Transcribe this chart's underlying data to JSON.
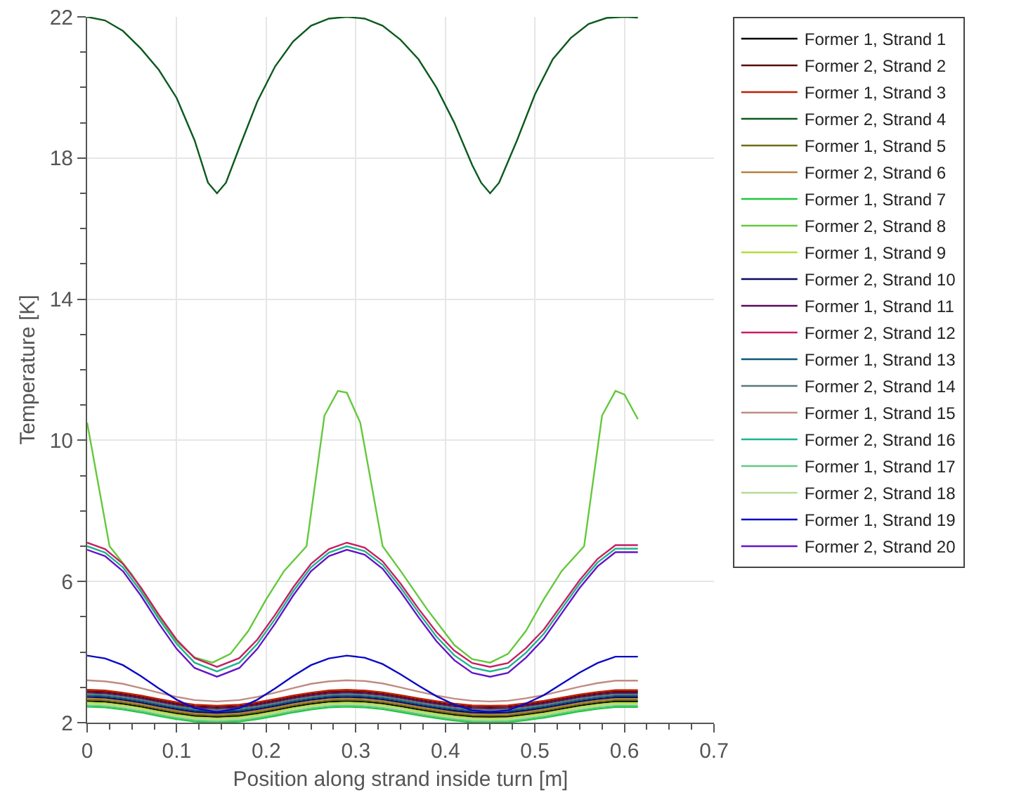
{
  "chart_data": {
    "type": "line",
    "xlabel": "Position along strand inside turn [m]",
    "ylabel": "Temperature [K]",
    "x": [
      0,
      0.02,
      0.04,
      0.06,
      0.08,
      0.1,
      0.12,
      0.145,
      0.17,
      0.19,
      0.21,
      0.23,
      0.25,
      0.27,
      0.29,
      0.31,
      0.33,
      0.35,
      0.37,
      0.39,
      0.41,
      0.43,
      0.45,
      0.47,
      0.49,
      0.51,
      0.53,
      0.55,
      0.57,
      0.59,
      0.615
    ],
    "xlim": [
      0,
      0.7
    ],
    "xticks": [
      0,
      0.1,
      0.2,
      0.3,
      0.4,
      0.5,
      0.6,
      0.7
    ],
    "ylim": [
      2,
      22
    ],
    "yticks": [
      2,
      6,
      10,
      14,
      18,
      22
    ],
    "grid": true,
    "legend": "right",
    "marker": "none",
    "line_style": "solid",
    "series": [
      {
        "name": "Former 1, Strand 1",
        "color": "#000000",
        "values": [
          2.61,
          2.59,
          2.53,
          2.45,
          2.35,
          2.26,
          2.19,
          2.16,
          2.19,
          2.26,
          2.35,
          2.45,
          2.53,
          2.59,
          2.61,
          2.59,
          2.54,
          2.46,
          2.37,
          2.29,
          2.22,
          2.17,
          2.16,
          2.17,
          2.23,
          2.3,
          2.39,
          2.48,
          2.55,
          2.6,
          2.6
        ]
      },
      {
        "name": "Former 2, Strand 2",
        "color": "#5a0a0a",
        "values": [
          2.89,
          2.87,
          2.81,
          2.73,
          2.63,
          2.54,
          2.47,
          2.44,
          2.47,
          2.54,
          2.63,
          2.73,
          2.81,
          2.87,
          2.89,
          2.87,
          2.82,
          2.74,
          2.65,
          2.57,
          2.5,
          2.45,
          2.44,
          2.45,
          2.51,
          2.58,
          2.67,
          2.76,
          2.83,
          2.88,
          2.88
        ]
      },
      {
        "name": "Former 1, Strand 3",
        "color": "#c01e00",
        "values": [
          2.93,
          2.91,
          2.85,
          2.77,
          2.67,
          2.58,
          2.51,
          2.48,
          2.51,
          2.58,
          2.67,
          2.77,
          2.85,
          2.91,
          2.93,
          2.91,
          2.86,
          2.78,
          2.69,
          2.61,
          2.54,
          2.49,
          2.48,
          2.49,
          2.55,
          2.62,
          2.71,
          2.8,
          2.87,
          2.92,
          2.92
        ]
      },
      {
        "name": "Former 2, Strand 4",
        "color": "#0a5a1e",
        "x": [
          0,
          0.02,
          0.04,
          0.06,
          0.08,
          0.1,
          0.12,
          0.135,
          0.145,
          0.155,
          0.17,
          0.19,
          0.21,
          0.23,
          0.25,
          0.27,
          0.29,
          0.31,
          0.33,
          0.35,
          0.37,
          0.39,
          0.41,
          0.43,
          0.44,
          0.45,
          0.46,
          0.48,
          0.5,
          0.52,
          0.54,
          0.56,
          0.58,
          0.6,
          0.615
        ],
        "values": [
          22,
          21.9,
          21.6,
          21.1,
          20.5,
          19.7,
          18.5,
          17.3,
          17,
          17.3,
          18.3,
          19.6,
          20.6,
          21.3,
          21.75,
          21.95,
          22,
          21.95,
          21.75,
          21.35,
          20.8,
          20,
          19,
          17.8,
          17.3,
          17,
          17.3,
          18.5,
          19.8,
          20.8,
          21.4,
          21.8,
          21.97,
          22,
          21.98
        ]
      },
      {
        "name": "Former 1, Strand 5",
        "color": "#6e6e14",
        "values": [
          2.65,
          2.63,
          2.57,
          2.49,
          2.39,
          2.3,
          2.23,
          2.2,
          2.23,
          2.3,
          2.39,
          2.49,
          2.57,
          2.63,
          2.65,
          2.63,
          2.58,
          2.5,
          2.41,
          2.33,
          2.26,
          2.21,
          2.2,
          2.21,
          2.27,
          2.34,
          2.43,
          2.52,
          2.59,
          2.64,
          2.64
        ]
      },
      {
        "name": "Former 2, Strand 6",
        "color": "#b4823c",
        "values": [
          2.69,
          2.67,
          2.61,
          2.53,
          2.43,
          2.34,
          2.27,
          2.24,
          2.27,
          2.34,
          2.43,
          2.53,
          2.61,
          2.67,
          2.69,
          2.67,
          2.62,
          2.54,
          2.45,
          2.37,
          2.3,
          2.25,
          2.24,
          2.25,
          2.31,
          2.38,
          2.47,
          2.56,
          2.63,
          2.68,
          2.68
        ]
      },
      {
        "name": "Former 1, Strand 7",
        "color": "#1ec83c",
        "values": [
          2.45,
          2.43,
          2.37,
          2.29,
          2.19,
          2.1,
          2.03,
          2,
          2.03,
          2.1,
          2.19,
          2.29,
          2.37,
          2.43,
          2.45,
          2.43,
          2.38,
          2.3,
          2.21,
          2.13,
          2.06,
          2.01,
          2,
          2.01,
          2.07,
          2.14,
          2.23,
          2.32,
          2.39,
          2.44,
          2.44
        ]
      },
      {
        "name": "Former 2, Strand 8",
        "color": "#64c83c",
        "x": [
          0,
          0.025,
          0.05,
          0.08,
          0.1,
          0.12,
          0.14,
          0.16,
          0.18,
          0.2,
          0.22,
          0.245,
          0.265,
          0.28,
          0.29,
          0.305,
          0.33,
          0.35,
          0.38,
          0.41,
          0.43,
          0.45,
          0.47,
          0.49,
          0.51,
          0.53,
          0.555,
          0.575,
          0.59,
          0.6,
          0.615
        ],
        "values": [
          10.5,
          7,
          6.2,
          5,
          4.3,
          3.85,
          3.7,
          3.95,
          4.6,
          5.5,
          6.3,
          7,
          10.7,
          11.4,
          11.35,
          10.5,
          7,
          6.3,
          5.2,
          4.2,
          3.8,
          3.7,
          3.95,
          4.6,
          5.5,
          6.3,
          7,
          10.7,
          11.4,
          11.3,
          10.6
        ]
      },
      {
        "name": "Former 1, Strand 9",
        "color": "#b4dc3c",
        "values": [
          2.57,
          2.55,
          2.49,
          2.41,
          2.31,
          2.22,
          2.15,
          2.12,
          2.15,
          2.22,
          2.31,
          2.41,
          2.49,
          2.55,
          2.57,
          2.55,
          2.5,
          2.42,
          2.33,
          2.25,
          2.18,
          2.13,
          2.12,
          2.13,
          2.19,
          2.26,
          2.35,
          2.44,
          2.51,
          2.56,
          2.56
        ]
      },
      {
        "name": "Former 2, Strand 10",
        "color": "#0a0a64",
        "values": [
          2.73,
          2.71,
          2.65,
          2.57,
          2.47,
          2.38,
          2.31,
          2.28,
          2.31,
          2.38,
          2.47,
          2.57,
          2.65,
          2.71,
          2.73,
          2.71,
          2.66,
          2.58,
          2.49,
          2.41,
          2.34,
          2.29,
          2.28,
          2.29,
          2.35,
          2.42,
          2.51,
          2.6,
          2.67,
          2.72,
          2.72
        ]
      },
      {
        "name": "Former 1, Strand 11",
        "color": "#5a0a5a",
        "values": [
          2.85,
          2.83,
          2.77,
          2.69,
          2.59,
          2.5,
          2.43,
          2.4,
          2.43,
          2.5,
          2.59,
          2.69,
          2.77,
          2.83,
          2.85,
          2.83,
          2.78,
          2.7,
          2.61,
          2.53,
          2.46,
          2.41,
          2.4,
          2.41,
          2.47,
          2.54,
          2.63,
          2.72,
          2.79,
          2.84,
          2.84
        ]
      },
      {
        "name": "Former 2, Strand 12",
        "color": "#c81e64",
        "values": [
          7.1,
          6.92,
          6.5,
          5.83,
          5.06,
          4.35,
          3.83,
          3.58,
          3.83,
          4.35,
          5.06,
          5.83,
          6.5,
          6.92,
          7.1,
          6.96,
          6.57,
          5.94,
          5.23,
          4.57,
          4.04,
          3.69,
          3.58,
          3.69,
          4.11,
          4.64,
          5.34,
          6.04,
          6.64,
          7.03,
          7.03
        ]
      },
      {
        "name": "Former 1, Strand 13",
        "color": "#0a5a78",
        "values": [
          2.77,
          2.75,
          2.69,
          2.61,
          2.51,
          2.42,
          2.35,
          2.32,
          2.35,
          2.42,
          2.51,
          2.61,
          2.69,
          2.75,
          2.77,
          2.75,
          2.7,
          2.62,
          2.53,
          2.45,
          2.38,
          2.33,
          2.32,
          2.33,
          2.39,
          2.46,
          2.55,
          2.64,
          2.71,
          2.76,
          2.76
        ]
      },
      {
        "name": "Former 2, Strand 14",
        "color": "#5a7878",
        "values": [
          2.81,
          2.79,
          2.73,
          2.65,
          2.55,
          2.46,
          2.39,
          2.36,
          2.39,
          2.46,
          2.55,
          2.65,
          2.73,
          2.79,
          2.81,
          2.79,
          2.74,
          2.66,
          2.57,
          2.49,
          2.42,
          2.37,
          2.36,
          2.37,
          2.43,
          2.5,
          2.59,
          2.68,
          2.75,
          2.8,
          2.8
        ]
      },
      {
        "name": "Former 1, Strand 15",
        "color": "#c08c82",
        "values": [
          3.2,
          3.17,
          3.1,
          2.98,
          2.85,
          2.73,
          2.64,
          2.6,
          2.64,
          2.73,
          2.85,
          2.98,
          3.1,
          3.17,
          3.2,
          3.18,
          3.11,
          3,
          2.88,
          2.77,
          2.68,
          2.62,
          2.6,
          2.62,
          2.69,
          2.78,
          2.9,
          3.02,
          3.12,
          3.19,
          3.19
        ]
      },
      {
        "name": "Former 2, Strand 16",
        "color": "#1eb48c",
        "values": [
          7,
          6.82,
          6.4,
          5.72,
          4.94,
          4.23,
          3.7,
          3.45,
          3.7,
          4.23,
          4.94,
          5.72,
          6.4,
          6.82,
          7,
          6.86,
          6.47,
          5.83,
          5.12,
          4.44,
          3.91,
          3.56,
          3.45,
          3.56,
          3.98,
          4.52,
          5.23,
          5.94,
          6.54,
          6.93,
          6.93
        ]
      },
      {
        "name": "Former 1, Strand 17",
        "color": "#64c882",
        "values": [
          2.49,
          2.47,
          2.41,
          2.33,
          2.23,
          2.14,
          2.07,
          2.04,
          2.07,
          2.14,
          2.23,
          2.33,
          2.41,
          2.47,
          2.49,
          2.47,
          2.42,
          2.34,
          2.25,
          2.17,
          2.1,
          2.05,
          2.04,
          2.05,
          2.11,
          2.18,
          2.27,
          2.36,
          2.43,
          2.48,
          2.48
        ]
      },
      {
        "name": "Former 2, Strand 18",
        "color": "#b4dc96",
        "values": [
          2.53,
          2.51,
          2.45,
          2.37,
          2.27,
          2.18,
          2.11,
          2.08,
          2.11,
          2.18,
          2.27,
          2.37,
          2.45,
          2.51,
          2.53,
          2.51,
          2.46,
          2.38,
          2.29,
          2.21,
          2.14,
          2.09,
          2.08,
          2.09,
          2.15,
          2.22,
          2.31,
          2.4,
          2.47,
          2.52,
          2.52
        ]
      },
      {
        "name": "Former 1, Strand 19",
        "color": "#0a0ac8",
        "values": [
          3.9,
          3.82,
          3.63,
          3.32,
          2.97,
          2.65,
          2.41,
          2.3,
          2.41,
          2.65,
          2.97,
          3.32,
          3.63,
          3.82,
          3.9,
          3.84,
          3.66,
          3.37,
          3.05,
          2.75,
          2.51,
          2.35,
          2.3,
          2.35,
          2.54,
          2.78,
          3.1,
          3.42,
          3.69,
          3.87,
          3.87
        ]
      },
      {
        "name": "Former 2, Strand 20",
        "color": "#6414c8",
        "values": [
          6.9,
          6.72,
          6.29,
          5.6,
          4.81,
          4.09,
          3.55,
          3.3,
          3.55,
          4.09,
          4.81,
          5.6,
          6.29,
          6.72,
          6.9,
          6.76,
          6.36,
          5.71,
          4.99,
          4.31,
          3.77,
          3.41,
          3.3,
          3.41,
          3.84,
          4.38,
          5.1,
          5.82,
          6.43,
          6.83,
          6.83
        ]
      }
    ]
  }
}
